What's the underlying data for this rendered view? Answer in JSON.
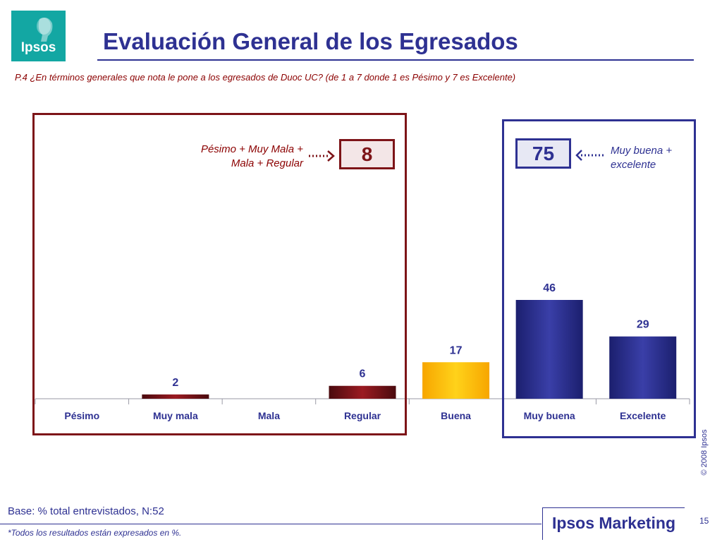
{
  "logo": {
    "text": "Ipsos"
  },
  "header": {
    "title": "Evaluación General de los Egresados",
    "question": "P.4 ¿En términos generales que nota le pone a los egresados de Duoc UC? (de 1 a 7 donde 1 es Pésimo y 7 es Excelente)"
  },
  "summary": {
    "negative_label_line1": "Pésimo + Muy Mala +",
    "negative_label_line2": "Mala + Regular",
    "negative_value": "8",
    "positive_label_line1": "Muy buena +",
    "positive_label_line2": "excelente",
    "positive_value": "75"
  },
  "chart_data": {
    "type": "bar",
    "categories": [
      "Pésimo",
      "Muy mala",
      "Mala",
      "Regular",
      "Buena",
      "Muy buena",
      "Excelente"
    ],
    "values": [
      0,
      2,
      0,
      6,
      17,
      46,
      29
    ],
    "data_labels": [
      "",
      "2",
      "",
      "6",
      "17",
      "46",
      "29"
    ],
    "ylim": [
      0,
      46
    ],
    "grid": false,
    "legend": "none",
    "colors": [
      "#7d1418",
      "#7d1418",
      "#7d1418",
      "#7d1418",
      "#fbb400",
      "#2e3192",
      "#2e3192"
    ]
  },
  "footer": {
    "base": "Base: % total entrevistados, N:52",
    "note": "*Todos los resultados están expresados en %.",
    "brand": "Ipsos Marketing",
    "page": "15",
    "copyright": "© 2008 Ipsos"
  },
  "colors": {
    "primary": "#2e3192",
    "dark_red": "#7d1418",
    "teal": "#13a7a3",
    "gold": "#fbb400"
  }
}
